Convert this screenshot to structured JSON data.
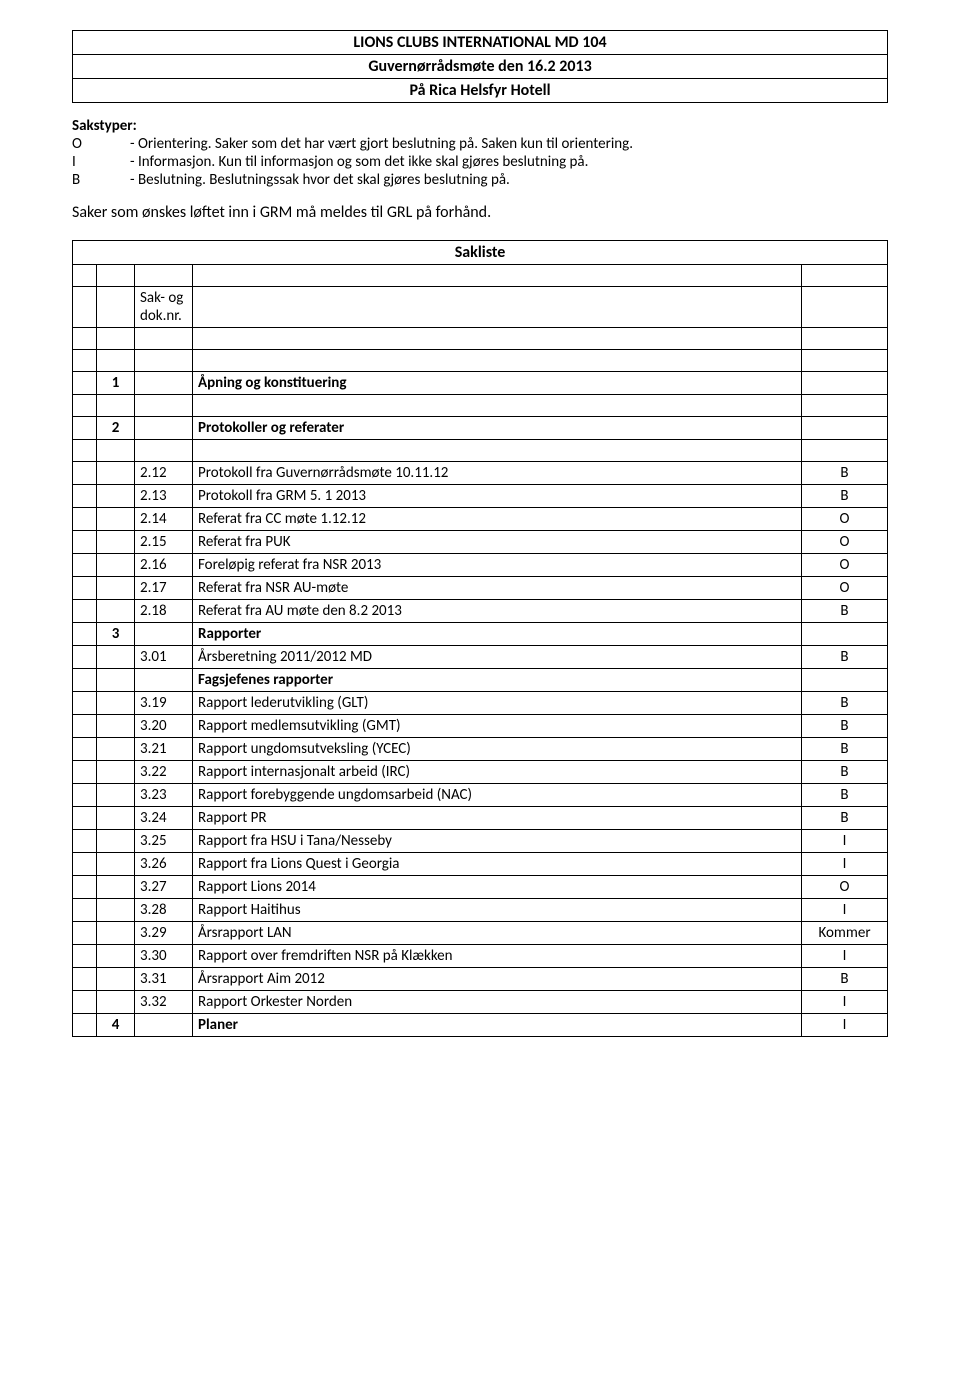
{
  "header": {
    "line1": "LIONS CLUBS INTERNATIONAL MD 104",
    "line2": "Guvernørrådsmøte den 16.2 2013",
    "line3": "På Rica Helsfyr Hotell"
  },
  "sakstyper": {
    "title": "Sakstyper:",
    "items": [
      {
        "code": "O",
        "desc": "- Orientering. Saker som det har vært gjort beslutning på. Saken kun til orientering."
      },
      {
        "code": "I",
        "desc": "- Informasjon. Kun til informasjon og som det ikke skal gjøres beslutning på."
      },
      {
        "code": "B",
        "desc": "- Beslutning. Beslutningssak hvor det skal gjøres beslutning på."
      }
    ]
  },
  "notice": "Saker som ønskes løftet inn i GRM må meldes til GRL på forhånd.",
  "sakliste_title": "Sakliste",
  "sakdok_lines": [
    "Sak- og",
    "dok.nr."
  ],
  "rows": [
    {
      "type": "spacer"
    },
    {
      "type": "sakdok"
    },
    {
      "type": "spacer"
    },
    {
      "type": "spacer"
    },
    {
      "type": "section",
      "num": "1",
      "title": "Åpning og konstituering"
    },
    {
      "type": "spacer"
    },
    {
      "type": "section",
      "num": "2",
      "title": "Protokoller og referater"
    },
    {
      "type": "spacer"
    },
    {
      "type": "item",
      "nr": "2.12",
      "desc": "Protokoll fra Guvernørrådsmøte 10.11.12",
      "code": "B"
    },
    {
      "type": "item",
      "nr": "2.13",
      "desc": "Protokoll fra GRM 5. 1 2013",
      "code": "B"
    },
    {
      "type": "item",
      "nr": "2.14",
      "desc": "Referat fra CC møte 1.12.12",
      "code": "O"
    },
    {
      "type": "item",
      "nr": "2.15",
      "desc": "Referat fra PUK",
      "code": "O"
    },
    {
      "type": "item",
      "nr": "2.16",
      "desc": "Foreløpig referat fra NSR 2013",
      "code": "O"
    },
    {
      "type": "item",
      "nr": "2.17",
      "desc": "Referat fra NSR AU-møte",
      "code": "O"
    },
    {
      "type": "item",
      "nr": "2.18",
      "desc": "Referat fra AU møte den 8.2 2013",
      "code": "B"
    },
    {
      "type": "section",
      "num": "3",
      "title": "Rapporter"
    },
    {
      "type": "item",
      "nr": "3.01",
      "desc": "Årsberetning 2011/2012 MD",
      "code": "B"
    },
    {
      "type": "subheading",
      "desc": "Fagsjefenes rapporter"
    },
    {
      "type": "item",
      "nr": "3.19",
      "desc": "Rapport lederutvikling (GLT)",
      "code": "B"
    },
    {
      "type": "item",
      "nr": "3.20",
      "desc": "Rapport medlemsutvikling (GMT)",
      "code": "B"
    },
    {
      "type": "item",
      "nr": "3.21",
      "desc": "Rapport ungdomsutveksling (YCEC)",
      "code": "B"
    },
    {
      "type": "item",
      "nr": "3.22",
      "desc": "Rapport internasjonalt arbeid (IRC)",
      "code": "B"
    },
    {
      "type": "item",
      "nr": "3.23",
      "desc": "Rapport forebyggende ungdomsarbeid (NAC)",
      "code": "B"
    },
    {
      "type": "item",
      "nr": "3.24",
      "desc": "Rapport PR",
      "code": "B"
    },
    {
      "type": "item",
      "nr": "3.25",
      "desc": "Rapport fra HSU i Tana/Nesseby",
      "code": "I"
    },
    {
      "type": "item",
      "nr": "3.26",
      "desc": "Rapport fra Lions Quest i Georgia",
      "code": "I"
    },
    {
      "type": "item",
      "nr": "3.27",
      "desc": "Rapport Lions 2014",
      "code": "O"
    },
    {
      "type": "item",
      "nr": "3.28",
      "desc": "Rapport Haitihus",
      "code": "I"
    },
    {
      "type": "item",
      "nr": "3.29",
      "desc": "Årsrapport LAN",
      "code": "Kommer"
    },
    {
      "type": "item",
      "nr": "3.30",
      "desc": "Rapport over fremdriften NSR på Klækken",
      "code": "I"
    },
    {
      "type": "item",
      "nr": "3.31",
      "desc": "Årsrapport Aim 2012",
      "code": "B"
    },
    {
      "type": "item",
      "nr": "3.32",
      "desc": "Rapport Orkester Norden",
      "code": "I"
    },
    {
      "type": "section_with_code",
      "num": "4",
      "title": "Planer",
      "code": "I"
    }
  ]
}
